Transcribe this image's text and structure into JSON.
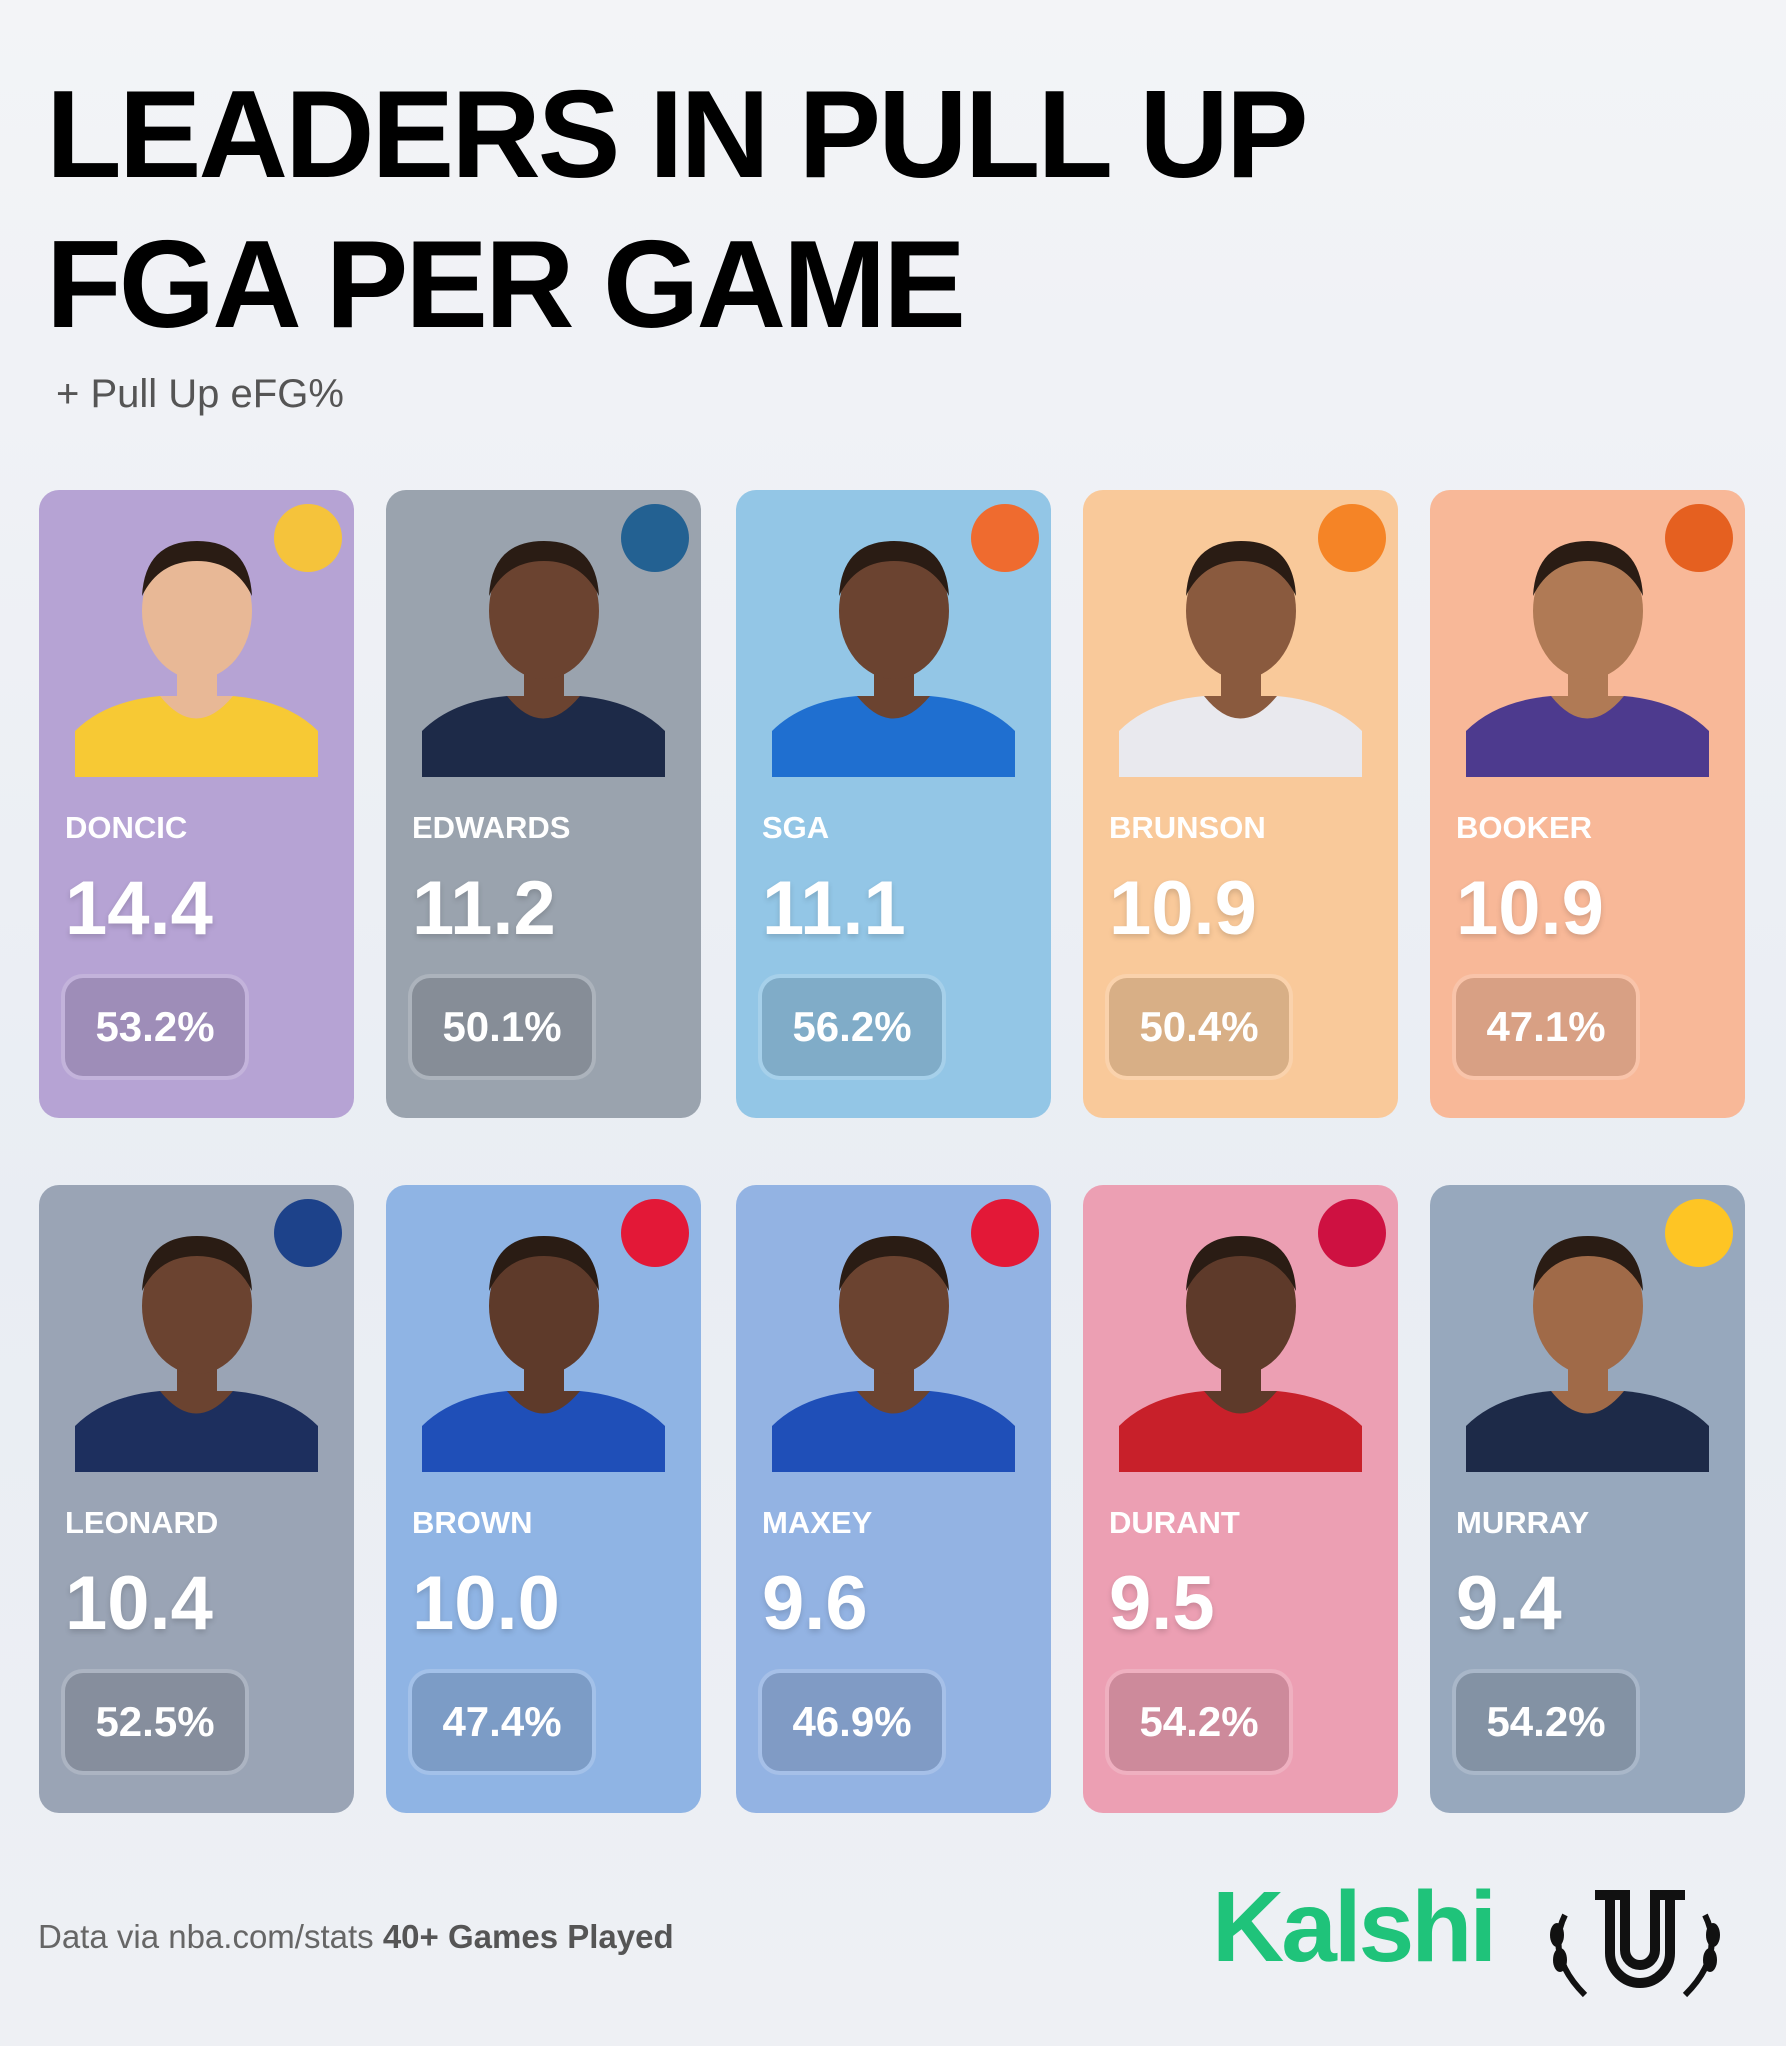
{
  "header": {
    "title": "LEADERS IN PULL UP FGA PER GAME",
    "subtitle": "+ Pull Up eFG%"
  },
  "cards": [
    {
      "name": "DONCIC",
      "value": "14.4",
      "efg": "53.2%"
    },
    {
      "name": "EDWARDS",
      "value": "11.2",
      "efg": "50.1%"
    },
    {
      "name": "SGA",
      "value": "11.1",
      "efg": "56.2%"
    },
    {
      "name": "BRUNSON",
      "value": "10.9",
      "efg": "50.4%"
    },
    {
      "name": "BOOKER",
      "value": "10.9",
      "efg": "47.1%"
    },
    {
      "name": "LEONARD",
      "value": "10.4",
      "efg": "52.5%"
    },
    {
      "name": "BROWN",
      "value": "10.0",
      "efg": "47.4%"
    },
    {
      "name": "MAXEY",
      "value": "9.6",
      "efg": "46.9%"
    },
    {
      "name": "DURANT",
      "value": "9.5",
      "efg": "54.2%"
    },
    {
      "name": "MURRAY",
      "value": "9.4",
      "efg": "54.2%"
    }
  ],
  "footer": {
    "source": "Data via nba.com/stats",
    "note": "40+ Games Played",
    "brand": "Kalshi"
  }
}
